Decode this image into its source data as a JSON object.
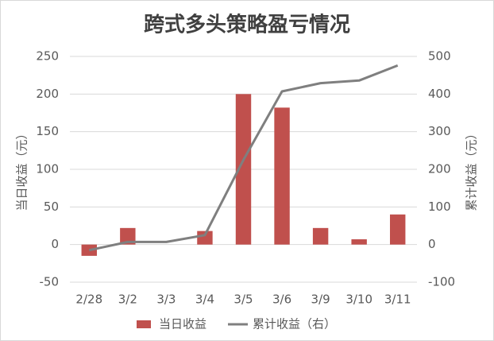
{
  "chart_data": {
    "type": "bar-line",
    "title": "跨式多头策略盈亏情况",
    "y_label": "当日收益（元）",
    "y2_label": "累计收益（元）",
    "categories": [
      "2/28",
      "3/2",
      "3/3",
      "3/4",
      "3/5",
      "3/6",
      "3/9",
      "3/10",
      "3/11"
    ],
    "series": [
      {
        "name": "当日收益",
        "type": "bar",
        "color": "#c0504d",
        "values": [
          -15,
          22,
          0,
          18,
          200,
          182,
          22,
          7,
          40
        ]
      },
      {
        "name": "累计收益（右）",
        "type": "line",
        "axis": "y2",
        "color": "#7f7f7f",
        "values": [
          -15,
          7,
          7,
          25,
          225,
          407,
          429,
          436,
          476
        ]
      }
    ],
    "ylim": [
      -50,
      250
    ],
    "yticks": [
      -50,
      0,
      50,
      100,
      150,
      200,
      250
    ],
    "y2lim": [
      -100,
      500
    ],
    "y2ticks": [
      -100,
      0,
      100,
      200,
      300,
      400,
      500
    ],
    "grid": true,
    "legend": "bottom"
  }
}
